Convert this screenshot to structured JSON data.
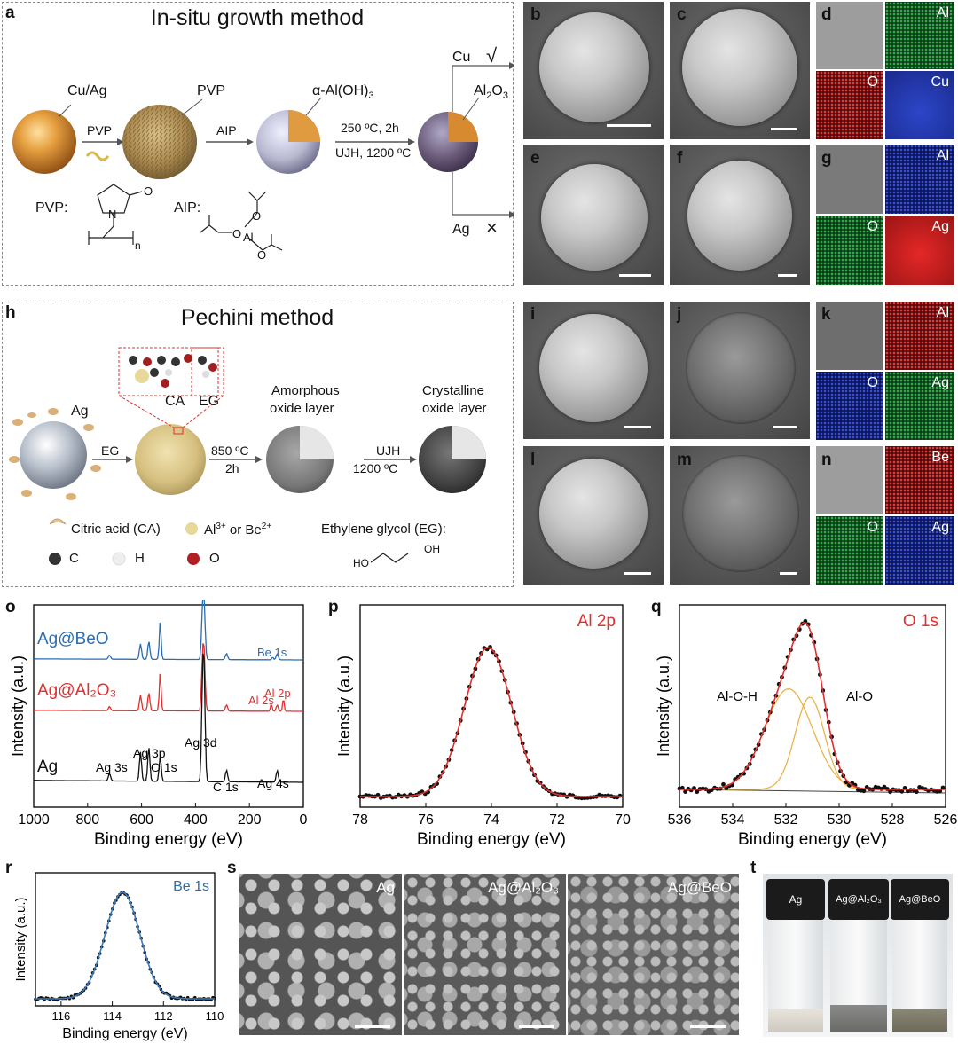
{
  "panels": {
    "a": {
      "letter": "a",
      "title": "In-situ growth method",
      "labels": {
        "cuag": "Cu/Ag",
        "pvp": "PVP",
        "aloh": "α-Al(OH)",
        "aloh_sub": "3",
        "al2o3_a": "Al",
        "al2o3_sub": "2",
        "al2o3_b": "O",
        "al2o3_sub2": "3",
        "arrow_pvp": "PVP",
        "arrow_aip": "AIP",
        "cond1": "250 ºC, 2h",
        "cond2": "UJH, 1200 ºC",
        "cu": "Cu",
        "cu_mark": "√",
        "ag": "Ag",
        "ag_mark": "×",
        "pvp_struct": "PVP:",
        "aip_struct": "AIP:",
        "o": "O",
        "n": "N",
        "al": "Al",
        "sub_n": "n"
      }
    },
    "h": {
      "letter": "h",
      "title": "Pechini method",
      "labels": {
        "ag": "Ag",
        "ca": "CA",
        "eg": "EG",
        "arrow_eg": "EG",
        "cond1": "850 ºC",
        "cond1b": "2h",
        "cond2": "UJH",
        "cond2b": "1200 ºC",
        "amorph1": "Amorphous",
        "amorph2": "oxide layer",
        "cryst1": "Crystalline",
        "cryst2": "oxide layer",
        "legend_ca": "Citric acid (CA)",
        "legend_al": "Al",
        "legend_al_sup": "3+",
        "legend_or": " or Be",
        "legend_be_sup": "2+",
        "legend_eg": "Ethylene glycol (EG):",
        "legend_c": "C",
        "legend_h": "H",
        "legend_o": "O",
        "oh1": "HO",
        "oh2": "OH"
      }
    },
    "sem": {
      "b": "b",
      "c": "c",
      "e": "e",
      "f": "f",
      "i": "i",
      "j": "j",
      "l": "l",
      "m": "m"
    },
    "eds": {
      "d": {
        "letter": "d",
        "maps": [
          "Al",
          "O",
          "Cu"
        ]
      },
      "g": {
        "letter": "g",
        "maps": [
          "Al",
          "O",
          "Ag"
        ]
      },
      "k": {
        "letter": "k",
        "maps": [
          "Al",
          "O",
          "Ag"
        ]
      },
      "n": {
        "letter": "n",
        "maps": [
          "Be",
          "O",
          "Ag"
        ]
      }
    },
    "s": {
      "letter": "s",
      "tiles": [
        "Ag",
        "Ag@Al₂O₃",
        "Ag@BeO"
      ]
    },
    "t": {
      "letter": "t",
      "caps": [
        "Ag",
        "Ag@Al₂O₃",
        "Ag@BeO"
      ]
    }
  },
  "chart_data": [
    {
      "id": "o",
      "type": "line",
      "letter": "o",
      "xlabel": "Binding energy (eV)",
      "ylabel": "Intensity (a.u.)",
      "xlim": [
        1000,
        0
      ],
      "xticks": [
        1000,
        800,
        600,
        400,
        200,
        0
      ],
      "series": [
        {
          "name": "Ag@BeO",
          "color": "#2a6db0"
        },
        {
          "name": "Ag@Al₂O₃",
          "color": "#e03030"
        },
        {
          "name": "Ag",
          "color": "#111111"
        }
      ],
      "annotations": [
        "Be 1s",
        "Al 2p",
        "Al 2s",
        "Ag 3d",
        "Ag 3p",
        "Ag 3s",
        "O 1s",
        "C 1s",
        "Ag 4s"
      ]
    },
    {
      "id": "p",
      "type": "line",
      "letter": "p",
      "title": "Al 2p",
      "xlabel": "Binding energy (eV)",
      "ylabel": "Intensity (a.u.)",
      "xlim": [
        78,
        70
      ],
      "xticks": [
        78,
        76,
        74,
        72,
        70
      ],
      "peak": {
        "center": 74.1,
        "fwhm": 1.7
      }
    },
    {
      "id": "q",
      "type": "line",
      "letter": "q",
      "title": "O 1s",
      "xlabel": "Binding energy (eV)",
      "ylabel": "Intensity (a.u.)",
      "xlim": [
        536,
        526
      ],
      "xticks": [
        536,
        534,
        532,
        530,
        528,
        526
      ],
      "components": [
        {
          "name": "Al-O-H",
          "center": 531.9,
          "height": 0.72
        },
        {
          "name": "Al-O",
          "center": 531.1,
          "height": 0.66
        }
      ]
    },
    {
      "id": "r",
      "type": "line",
      "letter": "r",
      "title": "Be 1s",
      "xlabel": "Binding energy (eV)",
      "ylabel": "Intensity (a.u.)",
      "xlim": [
        117,
        110
      ],
      "xticks": [
        116,
        114,
        112,
        110
      ],
      "peak": {
        "center": 113.6,
        "fwhm": 1.6
      }
    }
  ]
}
